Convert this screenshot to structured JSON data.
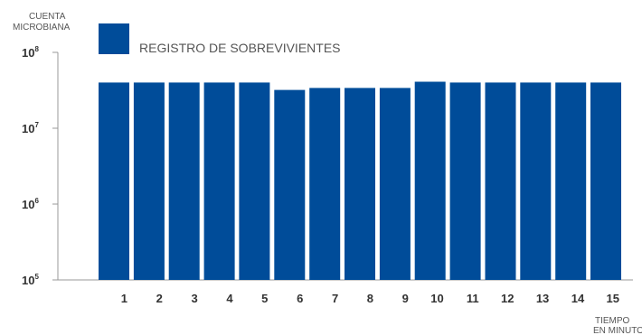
{
  "chart_data": {
    "type": "bar",
    "ylabel_lines": [
      "CUENTA",
      "MICROBIANA"
    ],
    "xlabel_lines": [
      "TIEMPO",
      "EN MINUTOS"
    ],
    "categories": [
      "1",
      "2",
      "3",
      "4",
      "5",
      "6",
      "7",
      "8",
      "9",
      "10",
      "11",
      "12",
      "13",
      "14",
      "15"
    ],
    "series": [
      {
        "name": "REGISTRO DE SOBREVIVIENTES",
        "values": [
          40000000,
          40000000,
          40000000,
          40000000,
          40000000,
          32000000,
          34000000,
          34000000,
          34000000,
          41000000,
          40000000,
          40000000,
          40000000,
          40000000,
          40000000
        ]
      }
    ],
    "y_scale": "log",
    "ylim": [
      100000,
      100000000
    ],
    "y_ticks": [
      {
        "base": "10",
        "exp": "5",
        "value": 100000
      },
      {
        "base": "10",
        "exp": "6",
        "value": 1000000
      },
      {
        "base": "10",
        "exp": "7",
        "value": 10000000
      },
      {
        "base": "10",
        "exp": "8",
        "value": 100000000
      }
    ],
    "colors": {
      "bar": "#004c99",
      "axis": "#999999"
    },
    "grid": false,
    "legend_position": "top-left"
  }
}
